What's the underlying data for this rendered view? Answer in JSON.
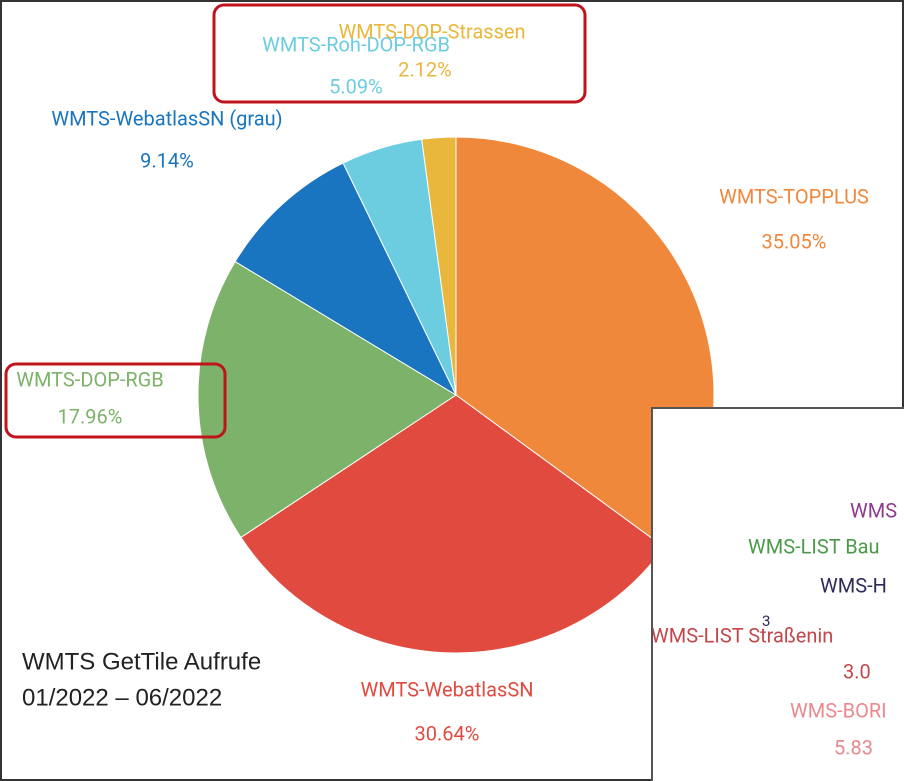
{
  "chart_data": {
    "type": "pie",
    "categories": [
      "WMTS-TOPPLUS",
      "WMTS-WebatlasSN",
      "WMTS-DOP-RGB",
      "WMTS-WebatlasSN (grau)",
      "WMTS-Roh-DOP-RGB",
      "WMTS-DOP-Strassen"
    ],
    "values": [
      35.05,
      30.64,
      17.96,
      9.14,
      5.09,
      2.12
    ],
    "value_labels": [
      "35.05%",
      "30.64%",
      "17.96%",
      "9.14%",
      "5.09%",
      "2.12%"
    ],
    "colors": [
      "#f0883c",
      "#e14b3f",
      "#7db26a",
      "#1a75c0",
      "#6ccde1",
      "#e8b73c"
    ],
    "annotations": [
      "WMTS GetTile Aufrufe",
      "01/2022 – 06/2022"
    ]
  },
  "inset_labels": [
    {
      "text": "WMS",
      "color": "#8e3a8e"
    },
    {
      "text": "WMS-LIST Bau",
      "color": "#4a9a4a"
    },
    {
      "text": "WMS-H",
      "color": "#2e2a5a"
    },
    {
      "text": "3",
      "color": "#2e2a5a"
    },
    {
      "text": "WMS-LIST Straßenin",
      "color": "#c2474a"
    },
    {
      "text": "3.0",
      "color": "#c2474a"
    },
    {
      "text": "WMS-BORI",
      "color": "#e88a8f"
    },
    {
      "text": "5.83",
      "color": "#e88a8f"
    }
  ]
}
